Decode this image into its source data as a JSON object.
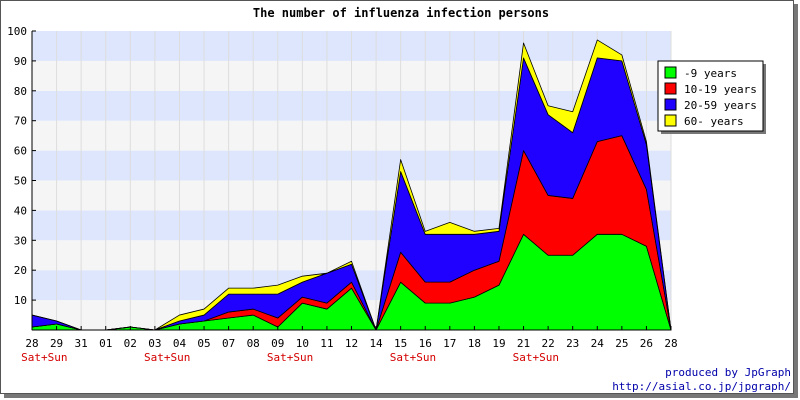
{
  "chart_data": {
    "type": "area",
    "stacked": true,
    "title": "The number of influenza infection persons",
    "xlabel": "",
    "ylabel": "",
    "ylim": [
      0,
      100
    ],
    "yticks": [
      10,
      20,
      30,
      40,
      50,
      60,
      70,
      80,
      90,
      100
    ],
    "grid": true,
    "legend_position": "right",
    "categories": [
      "28",
      "29",
      "31",
      "01",
      "02",
      "03",
      "04",
      "05",
      "07",
      "08",
      "09",
      "10",
      "11",
      "12",
      "14",
      "15",
      "16",
      "17",
      "18",
      "19",
      "21",
      "22",
      "23",
      "24",
      "25",
      "26",
      "28"
    ],
    "weekend_label": "Sat+Sun",
    "weekend_after": [
      "28",
      "03",
      "09",
      "15",
      "21"
    ],
    "series": [
      {
        "name": "-9 years",
        "color": "#00ff00",
        "values": [
          1,
          2,
          0,
          0,
          1,
          0,
          2,
          3,
          4,
          5,
          1,
          9,
          7,
          14,
          0,
          16,
          9,
          9,
          11,
          15,
          32,
          25,
          25,
          32,
          32,
          28,
          0
        ]
      },
      {
        "name": "10-19 years",
        "color": "#ff0000",
        "values": [
          0,
          0,
          0,
          0,
          0,
          0,
          0,
          0,
          2,
          2,
          3,
          2,
          2,
          2,
          0,
          10,
          7,
          7,
          9,
          8,
          28,
          20,
          19,
          31,
          33,
          19,
          0
        ]
      },
      {
        "name": "20-59 years",
        "color": "#2000ff",
        "values": [
          4,
          1,
          0,
          0,
          0,
          0,
          1,
          2,
          6,
          5,
          8,
          5,
          10,
          6,
          0,
          27,
          16,
          16,
          12,
          10,
          31,
          27,
          22,
          28,
          25,
          15,
          0
        ]
      },
      {
        "name": "60- years",
        "color": "#ffff00",
        "values": [
          0,
          0,
          0,
          0,
          0,
          0,
          2,
          2,
          2,
          2,
          3,
          2,
          0,
          1,
          0,
          4,
          1,
          4,
          1,
          1,
          5,
          3,
          7,
          6,
          2,
          1,
          0
        ]
      }
    ]
  },
  "footer": {
    "line1": "produced by JpGraph",
    "line2": "http://asial.co.jp/jpgraph/"
  }
}
